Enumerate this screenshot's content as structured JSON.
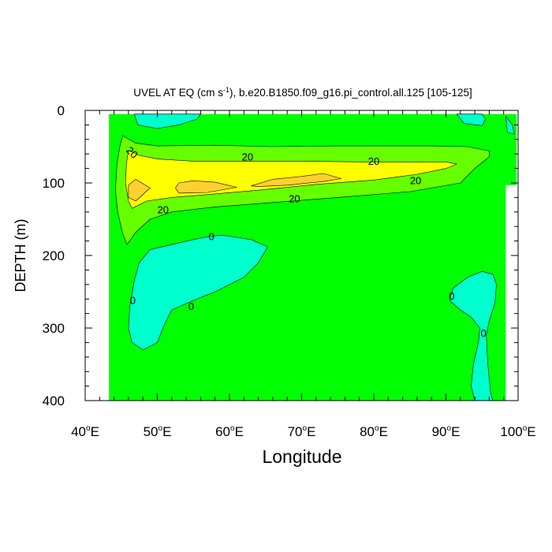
{
  "chart_data": {
    "type": "contour",
    "title_prefix": "UVEL AT EQ (cm s",
    "title_exponent": "-1",
    "title_suffix": "), b.e20.B1850.f09_g16.pi_control.all.125 [105-125]",
    "xlabel": "Longitude",
    "ylabel": "DEPTH (m)",
    "xlim": [
      40,
      100
    ],
    "ylim": [
      0,
      400
    ],
    "y_reversed": true,
    "x_ticks": [
      40,
      50,
      60,
      70,
      80,
      90,
      100
    ],
    "x_tick_labels": [
      {
        "num": "40",
        "sup": "o",
        "suf": "E"
      },
      {
        "num": "50",
        "sup": "o",
        "suf": "E"
      },
      {
        "num": "60",
        "sup": "o",
        "suf": "E"
      },
      {
        "num": "70",
        "sup": "o",
        "suf": "E"
      },
      {
        "num": "80",
        "sup": "o",
        "suf": "E"
      },
      {
        "num": "90",
        "sup": "o",
        "suf": "E"
      },
      {
        "num": "100",
        "sup": "o",
        "suf": "E"
      }
    ],
    "y_ticks": [
      0,
      100,
      200,
      300,
      400
    ],
    "y_tick_labels": [
      "0",
      "100",
      "200",
      "300",
      "400"
    ],
    "data_extent": {
      "lon": [
        43.3,
        98.3
      ],
      "depth": [
        5,
        400
      ]
    },
    "colors": {
      "negative": "#00ffcc",
      "background": "#00ff00",
      "level_10": "#66ff00",
      "level_20": "#ffff00",
      "level_40": "#ffd030",
      "contour_line": "#000000"
    },
    "regions": [
      {
        "level": "negative",
        "points": [
          [
            46.8,
            5
          ],
          [
            47.3,
            20
          ],
          [
            50,
            25
          ],
          [
            53,
            20
          ],
          [
            55.5,
            12
          ],
          [
            56,
            5
          ]
        ]
      },
      {
        "level": "negative",
        "points": [
          [
            91.5,
            5
          ],
          [
            92.5,
            18
          ],
          [
            95,
            21
          ],
          [
            95.5,
            12
          ],
          [
            95,
            5
          ]
        ]
      },
      {
        "level": "negative",
        "points": [
          [
            98.3,
            8
          ],
          [
            99.2,
            20
          ],
          [
            99.5,
            33
          ],
          [
            98.5,
            30
          ]
        ]
      },
      {
        "level": "negative",
        "points": [
          [
            57,
            174
          ],
          [
            59,
            172
          ],
          [
            61,
            175
          ],
          [
            63,
            178
          ],
          [
            65.3,
            188
          ],
          [
            64,
            210
          ],
          [
            62,
            230
          ],
          [
            58,
            250
          ],
          [
            55,
            262
          ],
          [
            52,
            275
          ],
          [
            51,
            295
          ],
          [
            50,
            320
          ],
          [
            48,
            330
          ],
          [
            46.5,
            320
          ],
          [
            46,
            300
          ],
          [
            46.2,
            270
          ],
          [
            46.8,
            235
          ],
          [
            47.5,
            210
          ],
          [
            49,
            192
          ],
          [
            52,
            185
          ],
          [
            55,
            178
          ]
        ]
      },
      {
        "level": "negative",
        "points": [
          [
            90.5,
            262
          ],
          [
            91,
            245
          ],
          [
            93,
            230
          ],
          [
            95,
            222
          ],
          [
            96.5,
            226
          ],
          [
            97,
            240
          ],
          [
            96.8,
            265
          ],
          [
            96,
            290
          ],
          [
            95.6,
            310
          ],
          [
            95.8,
            350
          ],
          [
            96.2,
            390
          ],
          [
            96.5,
            400
          ],
          [
            94,
            400
          ],
          [
            93.5,
            380
          ],
          [
            93.8,
            350
          ],
          [
            94.5,
            320
          ],
          [
            94.7,
            300
          ],
          [
            93.5,
            285
          ],
          [
            92,
            275
          ]
        ]
      },
      {
        "level": "level_10",
        "points": [
          [
            45.2,
            35
          ],
          [
            47,
            45
          ],
          [
            50,
            49
          ],
          [
            58,
            48
          ],
          [
            66,
            50
          ],
          [
            75,
            49
          ],
          [
            83,
            49
          ],
          [
            88,
            49
          ],
          [
            93,
            50
          ],
          [
            96,
            56
          ],
          [
            96,
            64
          ],
          [
            94,
            80
          ],
          [
            92,
            100
          ],
          [
            85,
            112
          ],
          [
            75,
            120
          ],
          [
            66,
            127
          ],
          [
            58,
            133
          ],
          [
            52,
            140
          ],
          [
            49,
            150
          ],
          [
            47,
            168
          ],
          [
            45.8,
            185
          ],
          [
            45.2,
            170
          ],
          [
            44.5,
            140
          ],
          [
            44.2,
            110
          ],
          [
            44.4,
            75
          ],
          [
            44.8,
            50
          ]
        ]
      },
      {
        "level": "level_20",
        "points": [
          [
            46,
            55
          ],
          [
            47.5,
            62
          ],
          [
            50,
            67
          ],
          [
            55,
            70
          ],
          [
            62,
            70
          ],
          [
            70,
            70
          ],
          [
            78,
            71
          ],
          [
            85,
            71
          ],
          [
            90,
            71
          ],
          [
            91.5,
            74
          ],
          [
            90,
            80
          ],
          [
            86,
            88
          ],
          [
            80,
            96
          ],
          [
            72,
            102
          ],
          [
            64,
            110
          ],
          [
            57,
            116
          ],
          [
            52,
            120
          ],
          [
            48.5,
            125
          ],
          [
            46.5,
            135
          ],
          [
            46,
            125
          ],
          [
            45.6,
            100
          ],
          [
            45.7,
            75
          ]
        ]
      },
      {
        "level": "level_40",
        "points": [
          [
            46,
            103
          ],
          [
            47,
            95
          ],
          [
            49,
            107
          ],
          [
            47,
            125
          ],
          [
            46,
            120
          ]
        ]
      },
      {
        "level": "level_40",
        "points": [
          [
            52.5,
            107
          ],
          [
            53,
            100
          ],
          [
            55,
            97
          ],
          [
            58,
            99
          ],
          [
            61,
            106
          ],
          [
            57,
            113
          ],
          [
            53,
            114
          ]
        ]
      },
      {
        "level": "level_40",
        "points": [
          [
            63,
            104
          ],
          [
            66,
            95
          ],
          [
            70,
            91
          ],
          [
            73,
            87
          ],
          [
            75.5,
            94
          ],
          [
            73,
            98
          ],
          [
            68,
            103
          ],
          [
            64,
            105
          ]
        ]
      }
    ],
    "contour_labels": [
      {
        "text": "20",
        "lon": 62.5,
        "depth": 64
      },
      {
        "text": "20",
        "lon": 80,
        "depth": 70
      },
      {
        "text": "20",
        "lon": 85.8,
        "depth": 97
      },
      {
        "text": "20",
        "lon": 69,
        "depth": 122
      },
      {
        "text": "20",
        "lon": 50.8,
        "depth": 137
      },
      {
        "text": "20",
        "lon": 46.5,
        "depth": 58,
        "rotate": 45
      },
      {
        "text": "0",
        "lon": 57.5,
        "depth": 174
      },
      {
        "text": "0",
        "lon": 46.6,
        "depth": 262
      },
      {
        "text": "0",
        "lon": 54.7,
        "depth": 270
      },
      {
        "text": "0",
        "lon": 90.8,
        "depth": 256
      },
      {
        "text": "0",
        "lon": 95.2,
        "depth": 307
      }
    ]
  }
}
